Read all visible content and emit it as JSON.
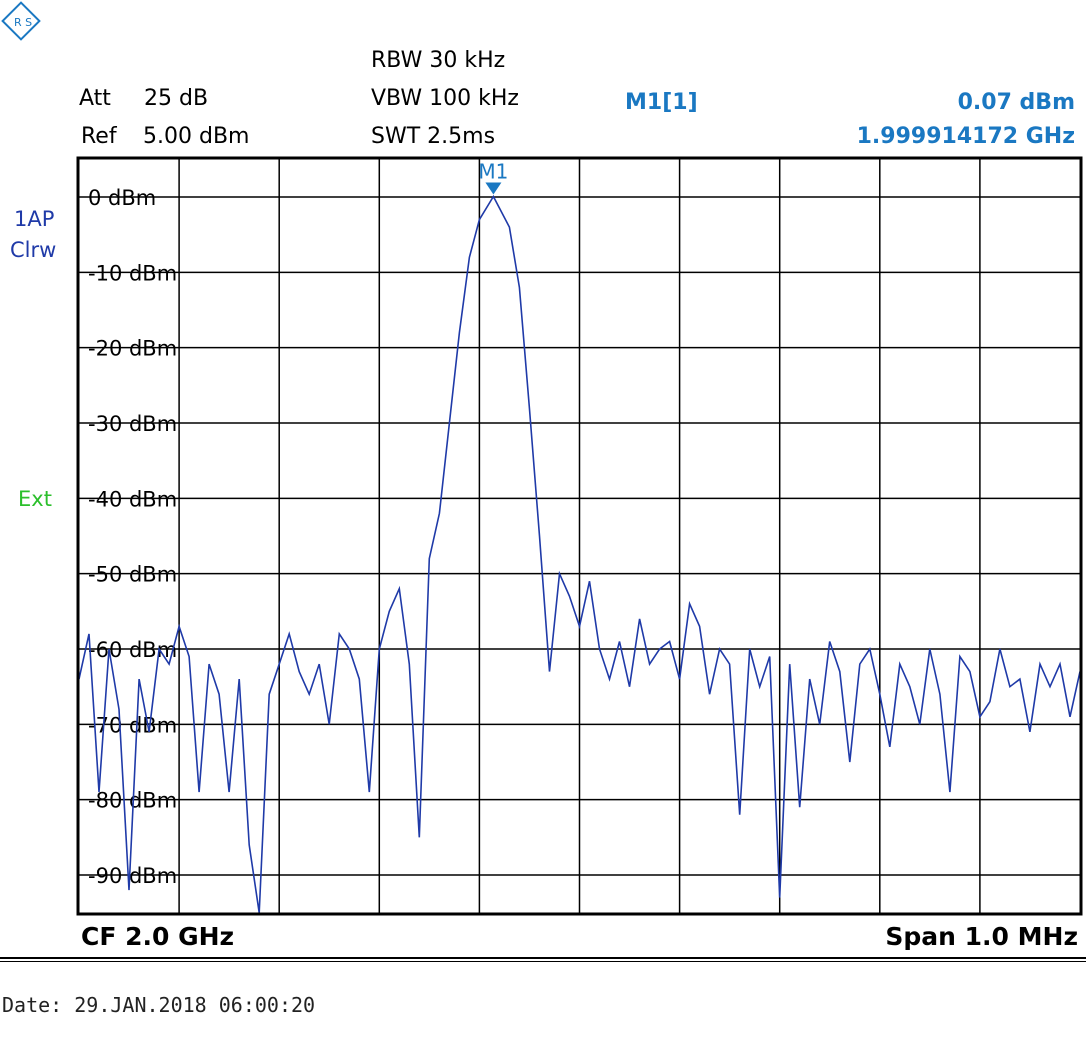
{
  "header": {
    "att_label": "Att",
    "att_value": "25 dB",
    "ref_label": "Ref",
    "ref_value": "5.00 dBm",
    "rbw": "RBW 30 kHz",
    "vbw": "VBW 100 kHz",
    "swt": "SWT 2.5ms",
    "marker_name": "M1[1]",
    "marker_level": "0.07 dBm",
    "marker_freq": "1.999914172 GHz"
  },
  "side": {
    "trace_mode": "1AP",
    "trace_type": "Clrw",
    "ext": "Ext"
  },
  "footer": {
    "center": "CF 2.0 GHz",
    "span": "Span 1.0 MHz",
    "date": "Date: 29.JAN.2018  06:00:20"
  },
  "colors": {
    "trace": "#1f3aa8",
    "marker": "#1a78c2",
    "ext": "#2bbf2b"
  },
  "chart_data": {
    "type": "line",
    "x_unit": "GHz",
    "xlim": [
      1.9995,
      2.0005
    ],
    "ylim": [
      -100,
      5
    ],
    "grid": true,
    "y_ticks": [
      {
        "value": 0,
        "label": "0 dBm"
      },
      {
        "value": -10,
        "label": "-10 dBm"
      },
      {
        "value": -20,
        "label": "-20 dBm"
      },
      {
        "value": -30,
        "label": "-30 dBm"
      },
      {
        "value": -40,
        "label": "-40 dBm"
      },
      {
        "value": -50,
        "label": "-50 dBm"
      },
      {
        "value": -60,
        "label": "-60 dBm"
      },
      {
        "value": -70,
        "label": "-70 dBm"
      },
      {
        "value": -80,
        "label": "-80 dBm"
      },
      {
        "value": -90,
        "label": "-90 dBm"
      }
    ],
    "marker": {
      "label": "M1",
      "x": 1.999914,
      "y": 0.07
    },
    "series": [
      {
        "x": [
          1.9995,
          1.99951,
          1.99952,
          1.99953,
          1.99954,
          1.99955,
          1.99956,
          1.99957,
          1.99958,
          1.99959,
          1.9996,
          1.99961,
          1.99962,
          1.99963,
          1.99964,
          1.99965,
          1.99966,
          1.99967,
          1.99968,
          1.99969,
          1.9997,
          1.99971,
          1.99972,
          1.99973,
          1.99974,
          1.99975,
          1.99976,
          1.99977,
          1.99978,
          1.99979,
          1.9998,
          1.99981,
          1.99982,
          1.99983,
          1.99984,
          1.99985,
          1.99986,
          1.99987,
          1.99988,
          1.99989,
          1.9999,
          1.999914,
          1.99993,
          1.99994,
          1.99995,
          1.99996,
          1.99997,
          1.99998,
          1.99999,
          2.0,
          2.00001,
          2.00002,
          2.00003,
          2.00004,
          2.00005,
          2.00006,
          2.00007,
          2.00008,
          2.00009,
          2.0001,
          2.00011,
          2.00012,
          2.00013,
          2.00014,
          2.00015,
          2.00016,
          2.00017,
          2.00018,
          2.00019,
          2.0002,
          2.00021,
          2.00022,
          2.00023,
          2.00024,
          2.00025,
          2.00026,
          2.00027,
          2.00028,
          2.00029,
          2.0003,
          2.00031,
          2.00032,
          2.00033,
          2.00034,
          2.00035,
          2.00036,
          2.00037,
          2.00038,
          2.00039,
          2.0004,
          2.00041,
          2.00042,
          2.00043,
          2.00044,
          2.00045,
          2.00046,
          2.00047,
          2.00048,
          2.00049,
          2.0005
        ],
        "y": [
          -64,
          -58,
          -79,
          -60,
          -68,
          -92,
          -64,
          -71,
          -60,
          -62,
          -57,
          -61,
          -79,
          -62,
          -66,
          -79,
          -64,
          -86,
          -95,
          -66,
          -62,
          -58,
          -63,
          -66,
          -62,
          -70,
          -58,
          -60,
          -64,
          -79,
          -60,
          -55,
          -52,
          -62,
          -85,
          -48,
          -42,
          -30,
          -18,
          -8,
          -3,
          0.07,
          -4,
          -12,
          -28,
          -45,
          -63,
          -50,
          -53,
          -57,
          -51,
          -60,
          -64,
          -59,
          -65,
          -56,
          -62,
          -60,
          -59,
          -64,
          -54,
          -57,
          -66,
          -60,
          -62,
          -82,
          -60,
          -65,
          -61,
          -93,
          -62,
          -81,
          -64,
          -70,
          -59,
          -63,
          -75,
          -62,
          -60,
          -66,
          -73,
          -62,
          -65,
          -70,
          -60,
          -66,
          -79,
          -61,
          -63,
          -69,
          -67,
          -60,
          -65,
          -64,
          -71,
          -62,
          -65,
          -62,
          -69,
          -63
        ]
      }
    ]
  }
}
